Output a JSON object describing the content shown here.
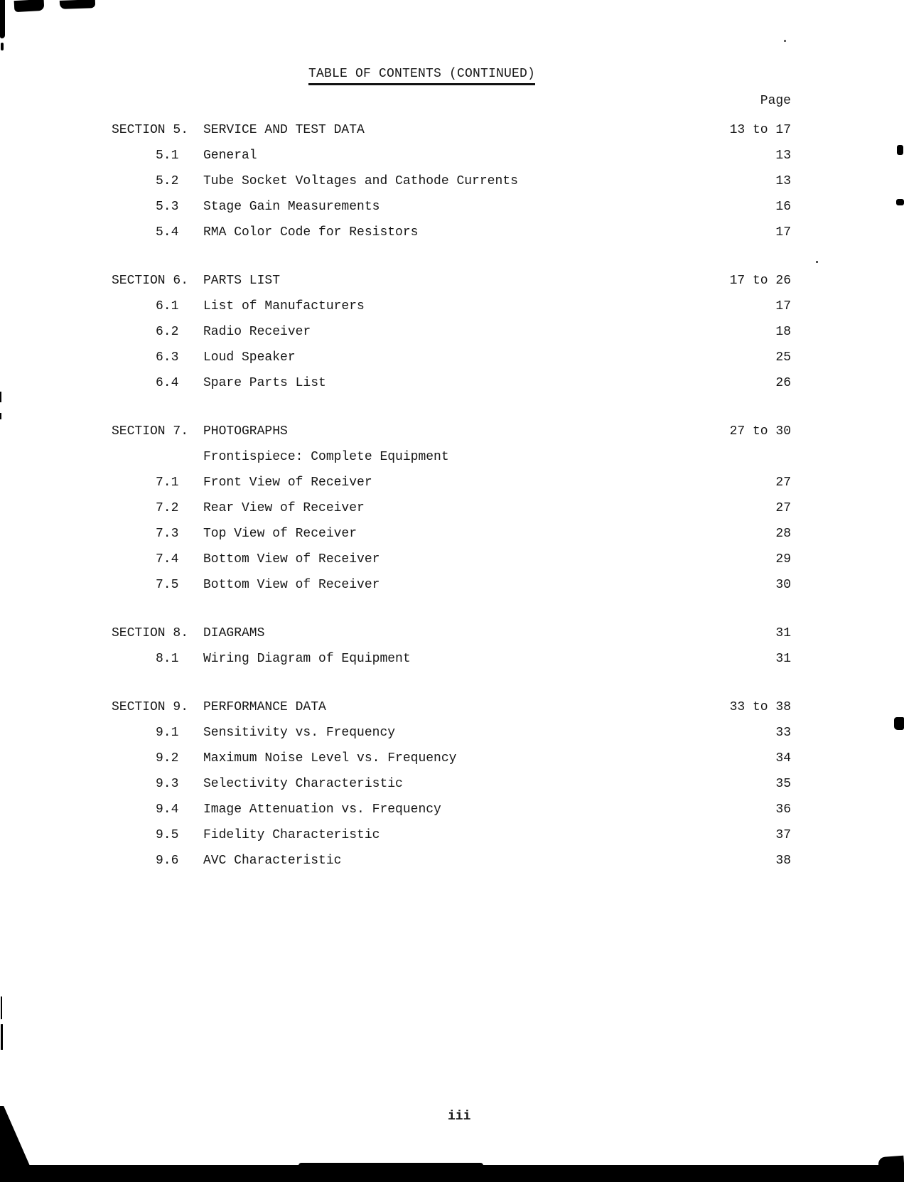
{
  "page": {
    "title": "TABLE OF CONTENTS (CONTINUED)",
    "page_column_header": "Page",
    "footer_page_number": "iii"
  },
  "sections": [
    {
      "label": "SECTION 5.",
      "title": "SERVICE AND TEST DATA",
      "pages": "13 to 17",
      "items": [
        {
          "num": "5.1",
          "title": "General",
          "page": "13"
        },
        {
          "num": "5.2",
          "title": "Tube Socket Voltages and Cathode Currents",
          "page": "13"
        },
        {
          "num": "5.3",
          "title": "Stage Gain Measurements",
          "page": "16"
        },
        {
          "num": "5.4",
          "title": "RMA Color Code for Resistors",
          "page": "17"
        }
      ]
    },
    {
      "label": "SECTION 6.",
      "title": "PARTS LIST",
      "pages": "17 to 26",
      "items": [
        {
          "num": "6.1",
          "title": "List of Manufacturers",
          "page": "17"
        },
        {
          "num": "6.2",
          "title": "Radio Receiver",
          "page": "18"
        },
        {
          "num": "6.3",
          "title": "Loud Speaker",
          "page": "25"
        },
        {
          "num": "6.4",
          "title": "Spare Parts List",
          "page": "26"
        }
      ]
    },
    {
      "label": "SECTION 7.",
      "title": "PHOTOGRAPHS",
      "pages": "27 to 30",
      "items": [
        {
          "num": "",
          "title": "Frontispiece:  Complete Equipment",
          "page": ""
        },
        {
          "num": "7.1",
          "title": "Front View of Receiver",
          "page": "27"
        },
        {
          "num": "7.2",
          "title": "Rear View of Receiver",
          "page": "27"
        },
        {
          "num": "7.3",
          "title": "Top View of Receiver",
          "page": "28"
        },
        {
          "num": "7.4",
          "title": "Bottom View of Receiver",
          "page": "29"
        },
        {
          "num": "7.5",
          "title": "Bottom View of Receiver",
          "page": "30"
        }
      ]
    },
    {
      "label": "SECTION 8.",
      "title": "DIAGRAMS",
      "pages": "31",
      "items": [
        {
          "num": "8.1",
          "title": "Wiring Diagram of Equipment",
          "page": "31"
        }
      ]
    },
    {
      "label": "SECTION 9.",
      "title": "PERFORMANCE DATA",
      "pages": "33 to 38",
      "items": [
        {
          "num": "9.1",
          "title": "Sensitivity vs. Frequency",
          "page": "33"
        },
        {
          "num": "9.2",
          "title": "Maximum Noise Level vs. Frequency",
          "page": "34"
        },
        {
          "num": "9.3",
          "title": "Selectivity Characteristic",
          "page": "35"
        },
        {
          "num": "9.4",
          "title": "Image Attenuation vs. Frequency",
          "page": "36"
        },
        {
          "num": "9.5",
          "title": "Fidelity Characteristic",
          "page": "37"
        },
        {
          "num": "9.6",
          "title": "AVC Characteristic",
          "page": "38"
        }
      ]
    }
  ]
}
